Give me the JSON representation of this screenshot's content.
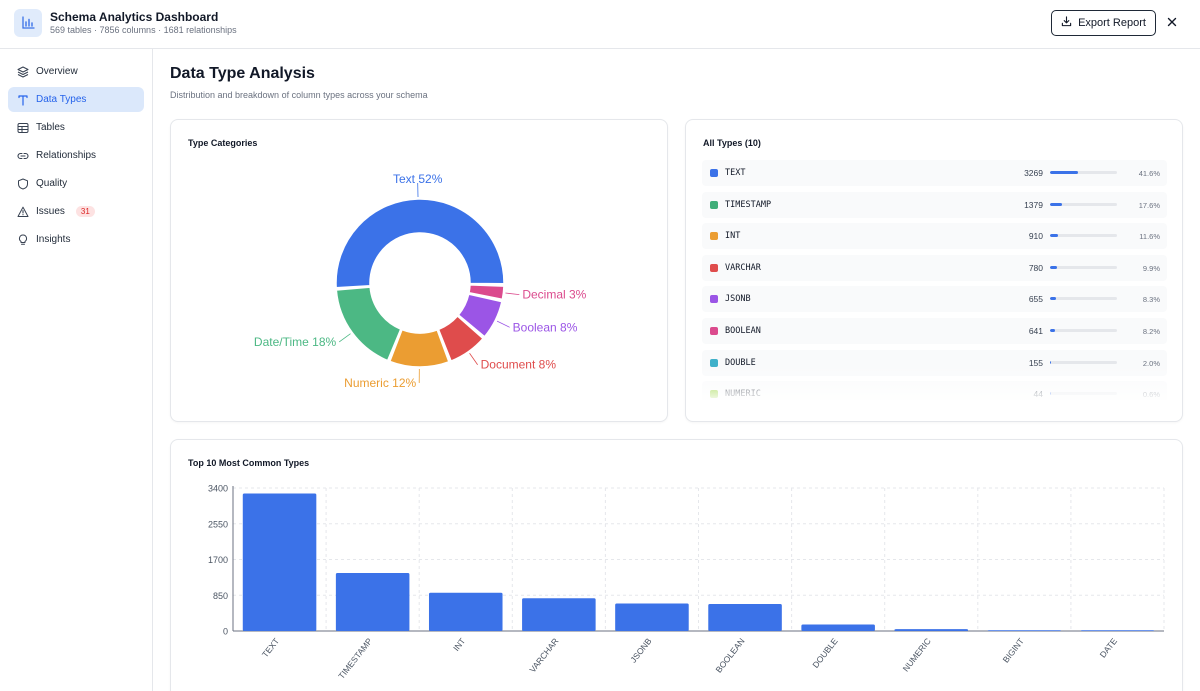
{
  "app": {
    "title": "Schema Analytics Dashboard",
    "subtitle": "569 tables · 7856 columns · 1681 relationships",
    "export_label": "Export Report",
    "accent": "#3b72e8"
  },
  "sidebar": {
    "items": [
      {
        "label": "Overview",
        "icon": "layers-icon",
        "active": false
      },
      {
        "label": "Data Types",
        "icon": "type-icon",
        "active": true
      },
      {
        "label": "Tables",
        "icon": "table-icon",
        "active": false
      },
      {
        "label": "Relationships",
        "icon": "link-icon",
        "active": false
      },
      {
        "label": "Quality",
        "icon": "shield-icon",
        "active": false
      },
      {
        "label": "Issues",
        "icon": "alert-triangle-icon",
        "active": false,
        "badge": "31"
      },
      {
        "label": "Insights",
        "icon": "lightbulb-icon",
        "active": false
      }
    ]
  },
  "main": {
    "title": "Data Type Analysis",
    "subtitle": "Distribution and breakdown of column types across your schema"
  },
  "categories_card": {
    "title": "Type Categories"
  },
  "types_card": {
    "title": "All Types (10)",
    "rows": [
      {
        "name": "TEXT",
        "count": "3269",
        "pct": "41.6%",
        "share": 0.416,
        "color": "#3b72e8"
      },
      {
        "name": "TIMESTAMP",
        "count": "1379",
        "pct": "17.6%",
        "share": 0.176,
        "color": "#3fae79"
      },
      {
        "name": "INT",
        "count": "910",
        "pct": "11.6%",
        "share": 0.116,
        "color": "#eb9d32"
      },
      {
        "name": "VARCHAR",
        "count": "780",
        "pct": "9.9%",
        "share": 0.099,
        "color": "#df4c4c"
      },
      {
        "name": "JSONB",
        "count": "655",
        "pct": "8.3%",
        "share": 0.083,
        "color": "#9b55e6"
      },
      {
        "name": "BOOLEAN",
        "count": "641",
        "pct": "8.2%",
        "share": 0.082,
        "color": "#db4a8d"
      },
      {
        "name": "DOUBLE",
        "count": "155",
        "pct": "2.0%",
        "share": 0.02,
        "color": "#3fb0c9"
      },
      {
        "name": "NUMERIC",
        "count": "44",
        "pct": "0.6%",
        "share": 0.006,
        "color": "#84cc16"
      }
    ]
  },
  "bar_card": {
    "title": "Top 10 Most Common Types"
  },
  "chart_data": [
    {
      "type": "pie",
      "title": "Type Categories",
      "donut": true,
      "slices": [
        {
          "label": "Text 52%",
          "value": 52,
          "color": "#3b72e8"
        },
        {
          "label": "Decimal 3%",
          "value": 3,
          "color": "#db4a8d"
        },
        {
          "label": "Boolean 8%",
          "value": 8,
          "color": "#9b55e6"
        },
        {
          "label": "Document 8%",
          "value": 8,
          "color": "#df4c4c"
        },
        {
          "label": "Numeric 12%",
          "value": 12,
          "color": "#eb9d32"
        },
        {
          "label": "Date/Time 18%",
          "value": 18,
          "color": "#4cb884"
        }
      ]
    },
    {
      "type": "bar",
      "title": "Top 10 Most Common Types",
      "categories": [
        "TEXT",
        "TIMESTAMP",
        "INT",
        "VARCHAR",
        "JSONB",
        "BOOLEAN",
        "DOUBLE",
        "NUMERIC",
        "BIGINT",
        "DATE"
      ],
      "values": [
        3269,
        1379,
        910,
        780,
        655,
        641,
        155,
        44,
        10,
        3
      ],
      "ylim": [
        0,
        3400
      ],
      "yticks": [
        "0",
        "850",
        "1700",
        "2550",
        "3400"
      ],
      "grid": true,
      "color": "#3b72e8"
    }
  ]
}
